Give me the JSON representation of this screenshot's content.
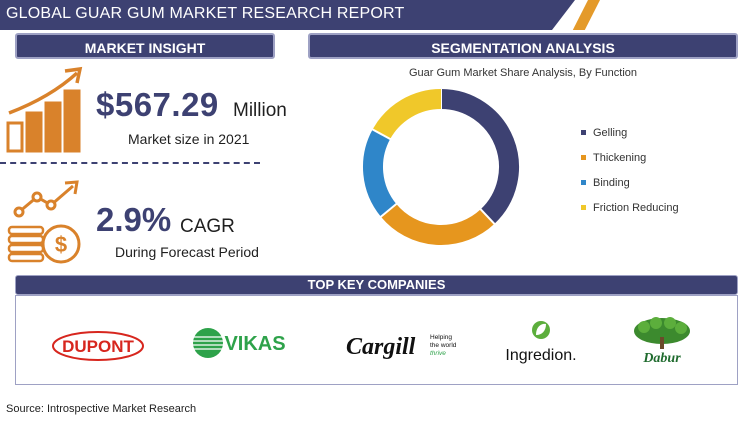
{
  "header": {
    "title": "GLOBAL GUAR GUM MARKET RESEARCH REPORT"
  },
  "market_insight": {
    "heading": "MARKET INSIGHT",
    "market_value": "$567.29",
    "market_unit": "Million",
    "market_caption": "Market size in 2021",
    "cagr_value": "2.9%",
    "cagr_unit": "CAGR",
    "cagr_caption": "During Forecast Period"
  },
  "segmentation": {
    "heading": "SEGMENTATION ANALYSIS",
    "chart_title": "Guar Gum Market Share Analysis, By Function"
  },
  "chart_data": {
    "type": "pie",
    "title": "Guar Gum Market Share Analysis, By Function",
    "legend_position": "right",
    "categories": [
      "Gelling",
      "Thickening",
      "Binding",
      "Friction Reducing"
    ],
    "values": [
      38,
      26,
      19,
      17
    ],
    "colors": [
      "#3d4172",
      "#e6961e",
      "#2f86c9",
      "#f0c82a"
    ]
  },
  "companies": {
    "heading": "TOP KEY COMPANIES",
    "dupont": "DUPONT",
    "vikas": "VIKAS",
    "cargill": "Cargill",
    "cargill_tag1": "Helping",
    "cargill_tag2": "the world",
    "cargill_tag3": "thrive",
    "ingredion": "Ingredion.",
    "dabur": "Dabur"
  },
  "source": "Source: Introspective Market Research",
  "colors": {
    "navy": "#3d4172",
    "orange": "#e49a2a"
  }
}
